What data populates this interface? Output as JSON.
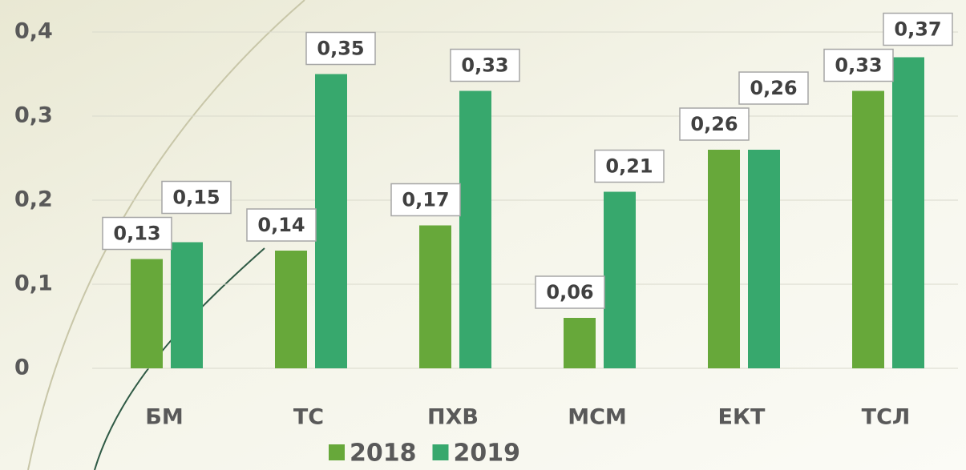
{
  "chart_data": {
    "type": "bar",
    "categories": [
      "БМ",
      "ТС",
      "ПХВ",
      "МСМ",
      "ЕКТ",
      "ТСЛ"
    ],
    "series": [
      {
        "name": "2018",
        "color": "#67a83a",
        "values": [
          0.13,
          0.14,
          0.17,
          0.06,
          0.26,
          0.33
        ],
        "value_labels": [
          "0,13",
          "0,14",
          "0,17",
          "0,06",
          "0,26",
          "0,33"
        ]
      },
      {
        "name": "2019",
        "color": "#37a86d",
        "values": [
          0.15,
          0.35,
          0.33,
          0.21,
          0.26,
          0.37
        ],
        "value_labels": [
          "0,15",
          "0,35",
          "0,33",
          "0,21",
          "0,26",
          "0,37"
        ]
      }
    ],
    "ylim": [
      0,
      0.4
    ],
    "yticks": [
      0,
      {
        "value": 0.1,
        "label": "0,1"
      },
      {
        "value": 0.2,
        "label": "0,2"
      },
      {
        "value": 0.3,
        "label": "0,3"
      },
      {
        "value": 0.4,
        "label": "0,4"
      }
    ],
    "grid": true,
    "legend": "bottom"
  }
}
